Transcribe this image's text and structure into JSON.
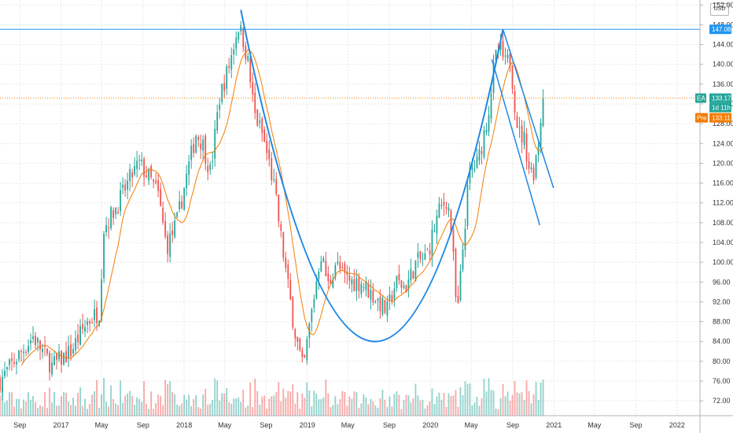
{
  "currency": "USD",
  "colors": {
    "up": "#26a69a",
    "down": "#ef5350",
    "ma": "#f57c00",
    "drawing": "#1e88e5",
    "hline": "#2196f3",
    "price_line": "#f57c00",
    "grid": "#e8e8e8"
  },
  "tags": {
    "level_value": "147.08",
    "last_label": "EA",
    "last_value": "133.17",
    "countdown": "1d 11h",
    "pre_label": "Pre",
    "pre_value": "133.11"
  },
  "chart_data": {
    "type": "candlestick",
    "title": "",
    "interval": "weekly",
    "y_range": [
      69,
      153
    ],
    "y_ticks": [
      72,
      76,
      80,
      84,
      88,
      92,
      96,
      100,
      104,
      108,
      112,
      116,
      120,
      124,
      128,
      132,
      136,
      140,
      144,
      148,
      152
    ],
    "x_range": [
      "2016-07-04",
      "2022-03-10"
    ],
    "x_ticks": [
      {
        "date": "2016-09-01",
        "label": "Sep"
      },
      {
        "date": "2017-01-01",
        "label": "2017"
      },
      {
        "date": "2017-05-01",
        "label": "May"
      },
      {
        "date": "2017-09-01",
        "label": "Sep"
      },
      {
        "date": "2018-01-01",
        "label": "2018"
      },
      {
        "date": "2018-05-01",
        "label": "May"
      },
      {
        "date": "2018-09-01",
        "label": "Sep"
      },
      {
        "date": "2019-01-01",
        "label": "2019"
      },
      {
        "date": "2019-05-01",
        "label": "May"
      },
      {
        "date": "2019-09-01",
        "label": "Sep"
      },
      {
        "date": "2020-01-01",
        "label": "2020"
      },
      {
        "date": "2020-05-01",
        "label": "May"
      },
      {
        "date": "2020-09-01",
        "label": "Sep"
      },
      {
        "date": "2021-01-01",
        "label": "2021"
      },
      {
        "date": "2021-05-01",
        "label": "May"
      },
      {
        "date": "2021-09-01",
        "label": "Sep"
      },
      {
        "date": "2022-01-01",
        "label": "2022"
      }
    ],
    "series_start": "2016-07-04",
    "series_end": "2020-11-30",
    "close_anchors": [
      [
        "2016-07-04",
        76
      ],
      [
        "2016-08-15",
        80
      ],
      [
        "2016-10-10",
        85
      ],
      [
        "2016-12-05",
        79
      ],
      [
        "2017-01-30",
        82
      ],
      [
        "2017-03-20",
        88
      ],
      [
        "2017-04-24",
        90
      ],
      [
        "2017-05-08",
        107
      ],
      [
        "2017-06-20",
        112
      ],
      [
        "2017-07-25",
        117
      ],
      [
        "2017-08-20",
        120
      ],
      [
        "2017-09-20",
        117
      ],
      [
        "2017-10-15",
        114
      ],
      [
        "2017-11-10",
        103
      ],
      [
        "2017-12-10",
        108
      ],
      [
        "2018-01-10",
        118
      ],
      [
        "2018-02-05",
        126
      ],
      [
        "2018-02-25",
        124
      ],
      [
        "2018-03-20",
        118
      ],
      [
        "2018-04-15",
        133
      ],
      [
        "2018-05-15",
        140
      ],
      [
        "2018-06-10",
        148
      ],
      [
        "2018-06-25",
        145
      ],
      [
        "2018-07-10",
        140
      ],
      [
        "2018-07-28",
        130
      ],
      [
        "2018-08-20",
        126
      ],
      [
        "2018-09-10",
        120
      ],
      [
        "2018-09-25",
        115
      ],
      [
        "2018-10-15",
        105
      ],
      [
        "2018-11-05",
        95
      ],
      [
        "2018-11-25",
        86
      ],
      [
        "2018-12-20",
        78
      ],
      [
        "2019-01-05",
        86
      ],
      [
        "2019-01-25",
        95
      ],
      [
        "2019-02-10",
        102
      ],
      [
        "2019-03-05",
        95
      ],
      [
        "2019-03-25",
        100
      ],
      [
        "2019-04-20",
        97
      ],
      [
        "2019-05-15",
        96
      ],
      [
        "2019-06-10",
        96
      ],
      [
        "2019-07-05",
        94
      ],
      [
        "2019-08-01",
        92
      ],
      [
        "2019-08-25",
        90
      ],
      [
        "2019-09-20",
        96
      ],
      [
        "2019-10-20",
        95
      ],
      [
        "2019-11-20",
        100
      ],
      [
        "2019-12-20",
        101
      ],
      [
        "2020-01-25",
        110
      ],
      [
        "2020-02-20",
        113
      ],
      [
        "2020-03-05",
        105
      ],
      [
        "2020-03-20",
        88
      ],
      [
        "2020-04-05",
        102
      ],
      [
        "2020-04-25",
        118
      ],
      [
        "2020-05-20",
        120
      ],
      [
        "2020-06-20",
        130
      ],
      [
        "2020-07-10",
        141
      ],
      [
        "2020-07-25",
        143
      ],
      [
        "2020-08-10",
        140
      ],
      [
        "2020-08-25",
        141
      ],
      [
        "2020-09-10",
        130
      ],
      [
        "2020-09-20",
        126
      ],
      [
        "2020-10-05",
        125
      ],
      [
        "2020-10-20",
        119
      ],
      [
        "2020-11-01",
        118
      ],
      [
        "2020-11-15",
        124
      ],
      [
        "2020-11-30",
        133.17
      ]
    ],
    "volume_scale": [
      0,
      10
    ],
    "ma_period": 10,
    "horizontal_level": 147.08,
    "last_price": 133.17,
    "premarket_price": 133.11,
    "drawings": {
      "cup_curve": [
        [
          "2018-06-18",
          151
        ],
        [
          "2019-07-15",
          84
        ],
        [
          "2020-08-03",
          147.08
        ]
      ],
      "channel_upper": [
        [
          "2020-08-03",
          147.08
        ],
        [
          "2020-12-31",
          115
        ]
      ],
      "channel_lower": [
        [
          "2020-07-01",
          141
        ],
        [
          "2020-11-20",
          107.5
        ]
      ]
    }
  }
}
